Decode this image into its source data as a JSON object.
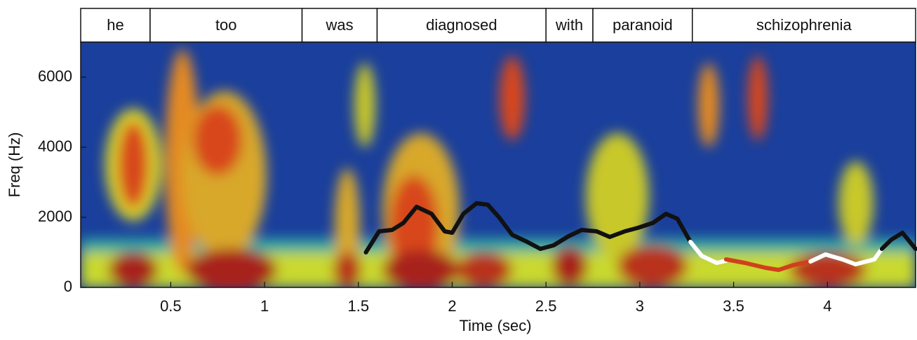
{
  "chart_data": {
    "type": "line",
    "xlabel": "Time (sec)",
    "ylabel": "Freq (Hz)",
    "xlim": [
      0.02,
      4.47
    ],
    "ylim": [
      0,
      7000
    ],
    "xticks": [
      0.5,
      1,
      1.5,
      2,
      2.5,
      3,
      3.5,
      4
    ],
    "yticks": [
      0,
      2000,
      4000,
      6000
    ],
    "words": [
      {
        "label": "he",
        "start": 0.02,
        "end": 0.39
      },
      {
        "label": "too",
        "start": 0.39,
        "end": 1.2
      },
      {
        "label": "was",
        "start": 1.2,
        "end": 1.6
      },
      {
        "label": "diagnosed",
        "start": 1.6,
        "end": 2.5
      },
      {
        "label": "with",
        "start": 2.5,
        "end": 2.75
      },
      {
        "label": "paranoid",
        "start": 2.75,
        "end": 3.28
      },
      {
        "label": "schizophrenia",
        "start": 3.28,
        "end": 4.47
      }
    ],
    "series": [
      {
        "color": "#111111",
        "x": [
          1.54,
          1.61,
          1.68,
          1.74,
          1.81,
          1.89,
          1.96,
          2.0,
          2.06,
          2.13,
          2.19,
          2.25,
          2.32,
          2.4,
          2.47,
          2.54,
          2.62,
          2.69,
          2.77,
          2.84,
          2.92,
          2.99,
          3.07,
          3.14,
          3.2,
          3.27
        ],
        "values": [
          1000,
          1600,
          1640,
          1840,
          2300,
          2100,
          1600,
          1560,
          2100,
          2400,
          2360,
          2000,
          1500,
          1300,
          1100,
          1200,
          1460,
          1640,
          1600,
          1440,
          1600,
          1700,
          1840,
          2100,
          1960,
          1300
        ]
      },
      {
        "color": "#ffffff",
        "x": [
          3.27,
          3.33,
          3.41,
          3.46
        ],
        "values": [
          1300,
          900,
          700,
          760
        ]
      },
      {
        "color": "#d0401c",
        "x": [
          3.46,
          3.56,
          3.67,
          3.74,
          3.82,
          3.91
        ],
        "values": [
          800,
          700,
          560,
          500,
          640,
          740
        ]
      },
      {
        "color": "#ffffff",
        "x": [
          3.91,
          3.99,
          4.08,
          4.15,
          4.25,
          4.29
        ],
        "values": [
          740,
          940,
          800,
          660,
          800,
          1100
        ]
      },
      {
        "color": "#111111",
        "x": [
          4.29,
          4.34,
          4.4,
          4.47
        ],
        "values": [
          1100,
          1360,
          1560,
          1100
        ]
      }
    ]
  }
}
